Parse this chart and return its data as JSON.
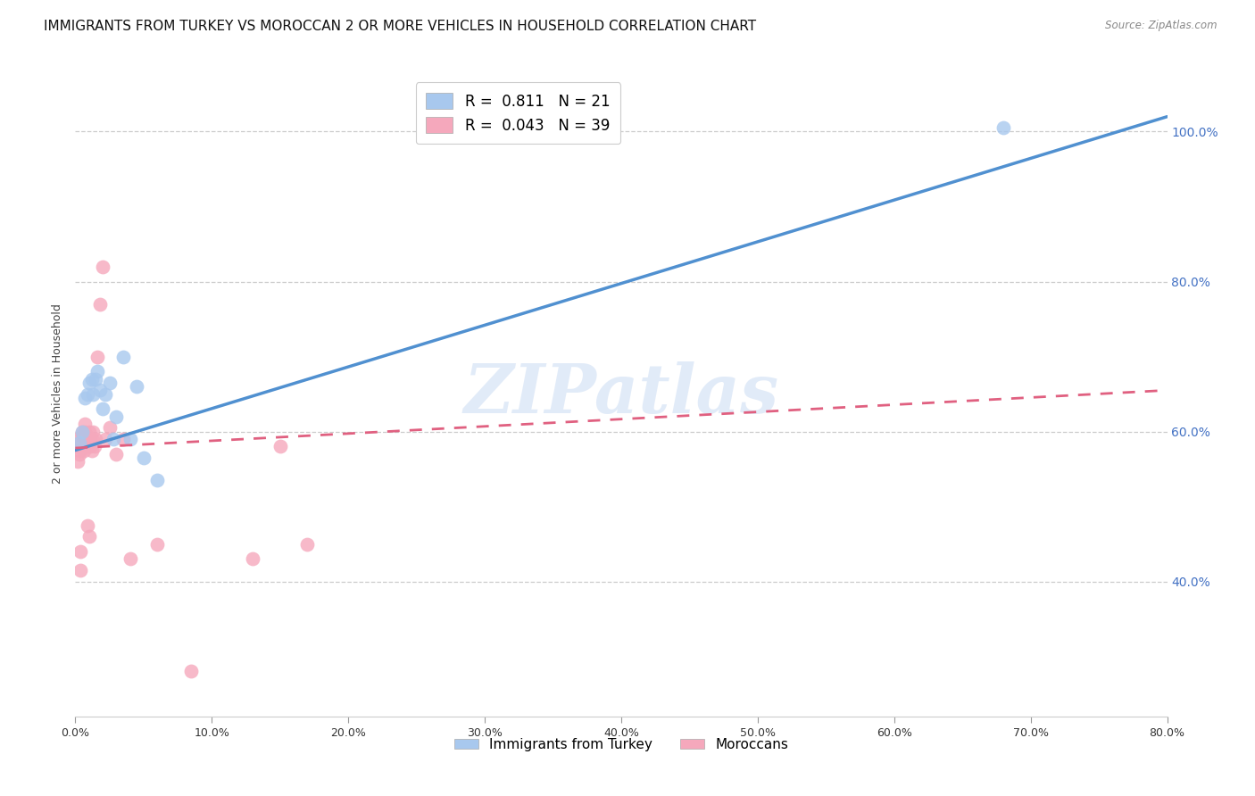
{
  "title": "IMMIGRANTS FROM TURKEY VS MOROCCAN 2 OR MORE VEHICLES IN HOUSEHOLD CORRELATION CHART",
  "source": "Source: ZipAtlas.com",
  "ylabel": "2 or more Vehicles in Household",
  "xlim": [
    0.0,
    0.8
  ],
  "ylim": [
    0.22,
    1.08
  ],
  "xtick_labels": [
    "0.0%",
    "10.0%",
    "20.0%",
    "30.0%",
    "40.0%",
    "50.0%",
    "60.0%",
    "70.0%",
    "80.0%"
  ],
  "xtick_values": [
    0.0,
    0.1,
    0.2,
    0.3,
    0.4,
    0.5,
    0.6,
    0.7,
    0.8
  ],
  "ytick_labels": [
    "40.0%",
    "60.0%",
    "80.0%",
    "100.0%"
  ],
  "ytick_values": [
    0.4,
    0.6,
    0.8,
    1.0
  ],
  "legend_turkey_R": "0.811",
  "legend_turkey_N": "21",
  "legend_moroccan_R": "0.043",
  "legend_moroccan_N": "39",
  "legend_label_turkey": "Immigrants from Turkey",
  "legend_label_moroccan": "Moroccans",
  "watermark": "ZIPatlas",
  "blue_color": "#A8C8EE",
  "pink_color": "#F5A8BC",
  "blue_line_color": "#5090D0",
  "pink_line_color": "#E06080",
  "right_tick_color": "#4472C4",
  "turkey_scatter_x": [
    0.003,
    0.005,
    0.007,
    0.009,
    0.01,
    0.012,
    0.013,
    0.015,
    0.016,
    0.018,
    0.02,
    0.022,
    0.025,
    0.028,
    0.03,
    0.035,
    0.04,
    0.045,
    0.05,
    0.06,
    0.68
  ],
  "turkey_scatter_y": [
    0.585,
    0.6,
    0.645,
    0.65,
    0.665,
    0.67,
    0.65,
    0.67,
    0.68,
    0.655,
    0.63,
    0.65,
    0.665,
    0.59,
    0.62,
    0.7,
    0.59,
    0.66,
    0.565,
    0.535,
    1.005
  ],
  "moroccan_scatter_x": [
    0.001,
    0.002,
    0.002,
    0.003,
    0.003,
    0.004,
    0.004,
    0.005,
    0.005,
    0.006,
    0.006,
    0.007,
    0.007,
    0.008,
    0.008,
    0.009,
    0.009,
    0.01,
    0.01,
    0.011,
    0.011,
    0.012,
    0.012,
    0.013,
    0.014,
    0.015,
    0.016,
    0.018,
    0.02,
    0.022,
    0.025,
    0.03,
    0.035,
    0.04,
    0.06,
    0.085,
    0.13,
    0.15,
    0.17
  ],
  "moroccan_scatter_y": [
    0.59,
    0.56,
    0.58,
    0.575,
    0.57,
    0.415,
    0.44,
    0.6,
    0.595,
    0.595,
    0.575,
    0.6,
    0.61,
    0.595,
    0.58,
    0.58,
    0.475,
    0.46,
    0.6,
    0.59,
    0.58,
    0.575,
    0.59,
    0.6,
    0.58,
    0.59,
    0.7,
    0.77,
    0.82,
    0.59,
    0.605,
    0.57,
    0.59,
    0.43,
    0.45,
    0.28,
    0.43,
    0.58,
    0.45
  ],
  "title_fontsize": 11,
  "axis_fontsize": 9,
  "tick_fontsize": 9,
  "blue_line_x0": 0.0,
  "blue_line_y0": 0.575,
  "blue_line_x1": 0.8,
  "blue_line_y1": 1.02,
  "pink_line_x0": 0.0,
  "pink_line_y0": 0.578,
  "pink_line_x1": 0.8,
  "pink_line_y1": 0.655
}
